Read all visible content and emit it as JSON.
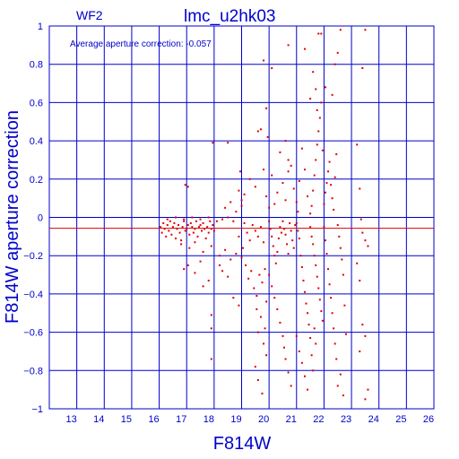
{
  "header": {
    "chip": "WF2",
    "title": "lmc_u2hk03",
    "annotation": "Average aperture correction: -0.057"
  },
  "colors": {
    "axis": "#0000cc",
    "grid": "#0000cc",
    "points": "#dd0000",
    "mean_line": "#dd0000",
    "background": "#ffffff"
  },
  "chart_data": {
    "type": "scatter",
    "title": "lmc_u2hk03",
    "xlabel": "F814W",
    "ylabel": "F814W aperture correction",
    "xlim": [
      12,
      26
    ],
    "ylim": [
      -1,
      1
    ],
    "x_ticks": [
      13,
      14,
      15,
      16,
      17,
      18,
      19,
      20,
      21,
      22,
      23,
      24,
      25,
      26
    ],
    "y_ticks": [
      -1,
      -0.8,
      -0.6,
      -0.4,
      -0.2,
      0,
      0.2,
      0.4,
      0.6,
      0.8,
      1
    ],
    "y_tick_labels": [
      "−1",
      "−0.8",
      "−0.6",
      "−0.4",
      "−0.2",
      "0",
      "0.2",
      "0.4",
      "0.6",
      "0.8",
      "1"
    ],
    "x_tick_labels": [
      "13",
      "14",
      "15",
      "16",
      "17",
      "18",
      "19",
      "20",
      "21",
      "22",
      "23",
      "24",
      "25",
      "26"
    ],
    "grid": true,
    "mean_line_y": -0.057,
    "points": [
      [
        16.05,
        -0.05
      ],
      [
        16.1,
        -0.08
      ],
      [
        16.15,
        -0.03
      ],
      [
        16.2,
        -0.06
      ],
      [
        16.25,
        -0.1
      ],
      [
        16.3,
        -0.04
      ],
      [
        16.35,
        -0.07
      ],
      [
        16.4,
        -0.02
      ],
      [
        16.45,
        -0.09
      ],
      [
        16.5,
        -0.05
      ],
      [
        16.55,
        -0.03
      ],
      [
        16.6,
        -0.11
      ],
      [
        16.65,
        -0.06
      ],
      [
        16.7,
        -0.04
      ],
      [
        16.75,
        -0.08
      ],
      [
        16.8,
        -0.12
      ],
      [
        16.85,
        -0.05
      ],
      [
        16.9,
        -0.02
      ],
      [
        16.95,
        -0.07
      ],
      [
        17.0,
        -0.06
      ],
      [
        17.05,
        -0.04
      ],
      [
        17.1,
        -0.09
      ],
      [
        17.15,
        -0.03
      ],
      [
        17.2,
        -0.05
      ],
      [
        17.25,
        -0.08
      ],
      [
        17.3,
        -0.06
      ],
      [
        17.35,
        -0.02
      ],
      [
        17.4,
        -0.1
      ],
      [
        17.45,
        -0.05
      ],
      [
        17.5,
        -0.04
      ],
      [
        17.55,
        -0.07
      ],
      [
        17.6,
        -0.03
      ],
      [
        17.65,
        -0.06
      ],
      [
        17.7,
        -0.11
      ],
      [
        17.75,
        -0.05
      ],
      [
        17.8,
        -0.08
      ],
      [
        17.85,
        -0.02
      ],
      [
        17.9,
        -0.06
      ],
      [
        17.95,
        -0.04
      ],
      [
        18.0,
        -0.07
      ],
      [
        16.3,
        -0.01
      ],
      [
        16.6,
        0.0
      ],
      [
        16.9,
        -0.01
      ],
      [
        17.2,
        0.0
      ],
      [
        17.5,
        -0.01
      ],
      [
        17.8,
        0.0
      ],
      [
        18.1,
        -0.02
      ],
      [
        18.3,
        -0.01
      ],
      [
        18.5,
        0.0
      ],
      [
        18.7,
        -0.02
      ],
      [
        16.8,
        -0.14
      ],
      [
        17.1,
        -0.16
      ],
      [
        17.3,
        -0.13
      ],
      [
        17.6,
        -0.18
      ],
      [
        17.9,
        -0.15
      ],
      [
        18.2,
        -0.2
      ],
      [
        18.4,
        -0.17
      ],
      [
        18.6,
        -0.22
      ],
      [
        18.8,
        -0.19
      ],
      [
        19.0,
        -0.21
      ],
      [
        16.95,
        0.17
      ],
      [
        17.05,
        0.16
      ],
      [
        17.05,
        -0.25
      ],
      [
        16.9,
        -0.27
      ],
      [
        17.3,
        -0.29
      ],
      [
        17.5,
        -0.23
      ],
      [
        17.6,
        -0.36
      ],
      [
        17.8,
        -0.33
      ],
      [
        18.3,
        -0.28
      ],
      [
        18.5,
        -0.31
      ],
      [
        17.9,
        -0.51
      ],
      [
        17.9,
        -0.58
      ],
      [
        17.9,
        -0.74
      ],
      [
        17.95,
        0.39
      ],
      [
        18.5,
        0.39
      ],
      [
        18.7,
        -0.42
      ],
      [
        18.9,
        -0.46
      ],
      [
        18.2,
        -0.25
      ],
      [
        18.4,
        0.05
      ],
      [
        18.6,
        0.08
      ],
      [
        18.8,
        0.03
      ],
      [
        19.0,
        0.06
      ],
      [
        19.1,
        -0.03
      ],
      [
        19.2,
        -0.08
      ],
      [
        19.3,
        -0.12
      ],
      [
        19.4,
        -0.04
      ],
      [
        19.5,
        -0.07
      ],
      [
        19.6,
        -0.1
      ],
      [
        19.7,
        -0.05
      ],
      [
        19.8,
        -0.13
      ],
      [
        18.9,
        -0.1
      ],
      [
        19.05,
        -0.16
      ],
      [
        19.15,
        -0.25
      ],
      [
        19.25,
        -0.32
      ],
      [
        19.35,
        -0.28
      ],
      [
        19.45,
        -0.37
      ],
      [
        19.55,
        -0.41
      ],
      [
        19.65,
        -0.3
      ],
      [
        19.75,
        -0.34
      ],
      [
        19.85,
        -0.27
      ],
      [
        18.9,
        0.14
      ],
      [
        18.95,
        0.24
      ],
      [
        19.0,
        0.09
      ],
      [
        19.1,
        0.12
      ],
      [
        19.3,
        0.2
      ],
      [
        19.5,
        0.16
      ],
      [
        19.6,
        0.45
      ],
      [
        19.7,
        0.46
      ],
      [
        19.9,
        0.57
      ],
      [
        19.95,
        0.42
      ],
      [
        19.8,
        0.25
      ],
      [
        19.9,
        0.11
      ],
      [
        20.0,
        0.05
      ],
      [
        20.1,
        0.22
      ],
      [
        20.2,
        0.07
      ],
      [
        20.3,
        0.13
      ],
      [
        20.4,
        0.34
      ],
      [
        20.5,
        0.18
      ],
      [
        20.6,
        0.09
      ],
      [
        20.7,
        0.24
      ],
      [
        19.55,
        -0.48
      ],
      [
        19.6,
        -0.6
      ],
      [
        19.7,
        -0.52
      ],
      [
        19.8,
        -0.66
      ],
      [
        19.9,
        -0.72
      ],
      [
        19.5,
        -0.78
      ],
      [
        19.6,
        -0.85
      ],
      [
        19.75,
        -0.92
      ],
      [
        19.85,
        -0.58
      ],
      [
        19.9,
        -0.44
      ],
      [
        20.0,
        -0.02
      ],
      [
        20.05,
        -0.06
      ],
      [
        20.1,
        -0.1
      ],
      [
        20.15,
        -0.15
      ],
      [
        20.2,
        -0.2
      ],
      [
        20.25,
        -0.24
      ],
      [
        20.3,
        -0.18
      ],
      [
        20.35,
        -0.11
      ],
      [
        20.4,
        -0.05
      ],
      [
        20.45,
        -0.08
      ],
      [
        20.0,
        -0.3
      ],
      [
        20.1,
        -0.36
      ],
      [
        20.2,
        -0.42
      ],
      [
        20.3,
        -0.48
      ],
      [
        20.4,
        -0.55
      ],
      [
        20.5,
        -0.62
      ],
      [
        20.55,
        -0.68
      ],
      [
        20.6,
        -0.74
      ],
      [
        20.7,
        -0.81
      ],
      [
        20.8,
        -0.88
      ],
      [
        20.5,
        -0.02
      ],
      [
        20.55,
        -0.06
      ],
      [
        20.6,
        -0.09
      ],
      [
        20.65,
        -0.14
      ],
      [
        20.7,
        -0.19
      ],
      [
        20.75,
        -0.03
      ],
      [
        20.8,
        -0.07
      ],
      [
        20.85,
        -0.12
      ],
      [
        20.9,
        -0.16
      ],
      [
        20.95,
        -0.04
      ],
      [
        20.6,
        0.4
      ],
      [
        20.7,
        0.3
      ],
      [
        20.8,
        0.27
      ],
      [
        20.9,
        0.15
      ],
      [
        21.0,
        0.08
      ],
      [
        21.05,
        0.03
      ],
      [
        21.1,
        0.19
      ],
      [
        21.2,
        0.36
      ],
      [
        21.3,
        0.25
      ],
      [
        21.4,
        0.11
      ],
      [
        21.0,
        -0.03
      ],
      [
        21.05,
        -0.07
      ],
      [
        21.1,
        -0.11
      ],
      [
        21.15,
        -0.2
      ],
      [
        21.2,
        -0.26
      ],
      [
        21.25,
        -0.33
      ],
      [
        21.3,
        -0.39
      ],
      [
        21.35,
        -0.45
      ],
      [
        21.4,
        -0.5
      ],
      [
        21.45,
        -0.56
      ],
      [
        21.0,
        -0.62
      ],
      [
        21.1,
        -0.7
      ],
      [
        21.2,
        -0.76
      ],
      [
        21.3,
        -0.83
      ],
      [
        21.4,
        -0.9
      ],
      [
        21.5,
        -0.63
      ],
      [
        21.55,
        -0.72
      ],
      [
        21.6,
        -0.8
      ],
      [
        21.65,
        -0.58
      ],
      [
        21.7,
        -0.66
      ],
      [
        21.5,
        0.02
      ],
      [
        21.55,
        0.06
      ],
      [
        21.6,
        0.14
      ],
      [
        21.65,
        0.22
      ],
      [
        21.7,
        0.3
      ],
      [
        21.75,
        0.38
      ],
      [
        21.8,
        0.45
      ],
      [
        21.85,
        0.52
      ],
      [
        21.9,
        0.6
      ],
      [
        21.95,
        0.35
      ],
      [
        21.5,
        -0.05
      ],
      [
        21.55,
        -0.1
      ],
      [
        21.6,
        -0.14
      ],
      [
        21.65,
        -0.2
      ],
      [
        21.7,
        -0.25
      ],
      [
        21.75,
        -0.31
      ],
      [
        21.8,
        -0.37
      ],
      [
        21.85,
        -0.43
      ],
      [
        21.9,
        -0.49
      ],
      [
        21.95,
        -0.54
      ],
      [
        22.0,
        0.07
      ],
      [
        22.05,
        0.13
      ],
      [
        22.1,
        0.18
      ],
      [
        22.15,
        0.24
      ],
      [
        22.2,
        0.29
      ],
      [
        22.25,
        0.17
      ],
      [
        22.3,
        0.1
      ],
      [
        22.35,
        0.04
      ],
      [
        22.4,
        0.21
      ],
      [
        22.45,
        0.33
      ],
      [
        22.0,
        -0.05
      ],
      [
        22.05,
        -0.12
      ],
      [
        22.1,
        -0.19
      ],
      [
        22.15,
        -0.27
      ],
      [
        22.2,
        -0.35
      ],
      [
        22.25,
        -0.42
      ],
      [
        22.3,
        -0.5
      ],
      [
        22.35,
        -0.58
      ],
      [
        22.4,
        -0.66
      ],
      [
        22.45,
        -0.74
      ],
      [
        22.5,
        -0.04
      ],
      [
        22.55,
        -0.1
      ],
      [
        22.6,
        -0.16
      ],
      [
        22.65,
        -0.22
      ],
      [
        22.7,
        -0.3
      ],
      [
        22.75,
        -0.46
      ],
      [
        22.6,
        -0.82
      ],
      [
        22.7,
        -0.93
      ],
      [
        22.5,
        -0.88
      ],
      [
        22.8,
        -0.61
      ],
      [
        21.6,
        0.76
      ],
      [
        21.7,
        0.67
      ],
      [
        21.8,
        0.96
      ],
      [
        21.9,
        0.96
      ],
      [
        22.05,
        0.68
      ],
      [
        22.3,
        0.64
      ],
      [
        22.4,
        0.8
      ],
      [
        22.5,
        0.86
      ],
      [
        21.5,
        0.62
      ],
      [
        21.75,
        0.56
      ],
      [
        19.8,
        0.82
      ],
      [
        20.1,
        0.78
      ],
      [
        20.7,
        0.9
      ],
      [
        21.3,
        0.88
      ],
      [
        22.6,
        0.98
      ],
      [
        23.5,
        0.98
      ],
      [
        23.4,
        0.78
      ],
      [
        23.2,
        0.38
      ],
      [
        23.3,
        0.15
      ],
      [
        23.35,
        -0.01
      ],
      [
        23.2,
        -0.24
      ],
      [
        23.3,
        -0.33
      ],
      [
        23.4,
        -0.56
      ],
      [
        23.5,
        -0.62
      ],
      [
        23.4,
        -0.08
      ],
      [
        23.5,
        -0.12
      ],
      [
        23.6,
        -0.15
      ],
      [
        23.3,
        -0.7
      ],
      [
        23.6,
        -0.9
      ],
      [
        23.5,
        -0.95
      ]
    ]
  }
}
